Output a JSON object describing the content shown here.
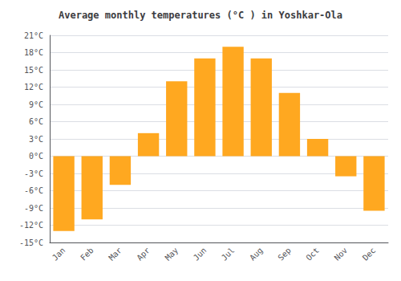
{
  "chart_data": {
    "type": "bar",
    "title": "Average monthly temperatures (°C ) in Yoshkar-Ola",
    "categories": [
      "Jan",
      "Feb",
      "Mar",
      "Apr",
      "May",
      "Jun",
      "Jul",
      "Aug",
      "Sep",
      "Oct",
      "Nov",
      "Dec"
    ],
    "values": [
      -13,
      -11,
      -5,
      4,
      13,
      17,
      19,
      17,
      11,
      3,
      -3.5,
      -9.5
    ],
    "color": "#FFA820",
    "ylim": [
      -15,
      21
    ],
    "yticks": [
      {
        "value": -15,
        "label": "-15°C"
      },
      {
        "value": -12,
        "label": "-12°C"
      },
      {
        "value": -9,
        "label": "-9°C"
      },
      {
        "value": -6,
        "label": "-6°C"
      },
      {
        "value": -3,
        "label": "-3°C"
      },
      {
        "value": 0,
        "label": "0°C"
      },
      {
        "value": 3,
        "label": "3°C"
      },
      {
        "value": 6,
        "label": "6°C"
      },
      {
        "value": 9,
        "label": "9°C"
      },
      {
        "value": 12,
        "label": "12°C"
      },
      {
        "value": 15,
        "label": "15°C"
      },
      {
        "value": 18,
        "label": "18°C"
      },
      {
        "value": 21,
        "label": "21°C"
      }
    ],
    "grid": true
  }
}
